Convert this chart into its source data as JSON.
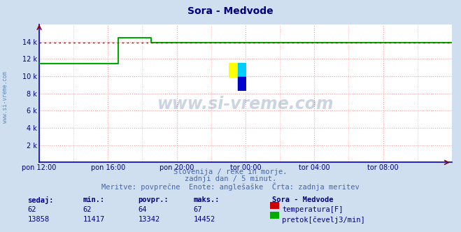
{
  "title": "Sora - Medvode",
  "title_color": "#000080",
  "bg_color": "#d0dff0",
  "plot_bg_color": "#ffffff",
  "grid_color_h": "#ff9999",
  "grid_color_v": "#aaddaa",
  "grid_style": ":",
  "x_min": 0,
  "x_max": 288,
  "y_min": 0,
  "y_max": 16000,
  "yticks": [
    2000,
    4000,
    6000,
    8000,
    10000,
    12000,
    14000
  ],
  "ytick_labels": [
    "2 k",
    "4 k",
    "6 k",
    "8 k",
    "10 k",
    "12 k",
    "14 k"
  ],
  "xtick_labels": [
    "pon 12:00",
    "pon 16:00",
    "pon 20:00",
    "tor 00:00",
    "tor 04:00",
    "tor 08:00"
  ],
  "xtick_positions": [
    0,
    48,
    96,
    144,
    192,
    240
  ],
  "temp_color": "#cc0000",
  "flow_color": "#00aa00",
  "flow_data_x": [
    0,
    55,
    55,
    78,
    78,
    288
  ],
  "flow_data_y": [
    11417,
    11417,
    14452,
    14452,
    13858,
    13858
  ],
  "temp_data_x": [
    0,
    288
  ],
  "temp_data_y": [
    13858,
    13858
  ],
  "subtitle1": "Slovenija / reke in morje.",
  "subtitle2": "zadnji dan / 5 minut.",
  "subtitle3": "Meritve: povprečne  Enote: anglešaške  Črta: zadnja meritev",
  "subtitle_color": "#4466aa",
  "table_header": "Sora - Medvode",
  "table_cols": [
    "sedaj:",
    "min.:",
    "povpr.:",
    "maks.:"
  ],
  "table_row1": [
    "62",
    "62",
    "64",
    "67"
  ],
  "table_row2": [
    "13858",
    "11417",
    "13342",
    "14452"
  ],
  "label_temp": "temperatura[F]",
  "label_flow": "pretok[čevelj3/min]",
  "watermark_text": "www.si-vreme.com",
  "watermark_color": "#1a3a7a",
  "axis_color": "#0000cc",
  "tick_color": "#000080",
  "left_label_color": "#336699",
  "logo_colors": [
    "#ffff00",
    "#00ccff",
    "#0000cc"
  ],
  "axis_arrow_color": "#880000"
}
